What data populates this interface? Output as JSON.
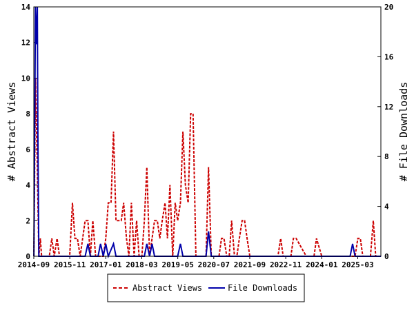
{
  "chart_data": {
    "type": "line",
    "x_tick_labels": [
      "2014-09",
      "2015-11",
      "2017-01",
      "2018-03",
      "2019-05",
      "2020-07",
      "2021-09",
      "2022-11",
      "2024-01",
      "2025-03"
    ],
    "y_left": {
      "label": "# Abstract Views",
      "lim": [
        0,
        14
      ],
      "ticks": [
        "0",
        "2",
        "4",
        "6",
        "8",
        "10",
        "12",
        "14"
      ]
    },
    "y_right": {
      "label": "# File Downloads",
      "lim": [
        0,
        20
      ],
      "ticks": [
        "0",
        "4",
        "8",
        "12",
        "16",
        "20"
      ]
    },
    "x_range": [
      2014.667,
      2025.917
    ],
    "legend_placement": "bottom",
    "series": [
      {
        "name": "Abstract Views",
        "axis": "left",
        "color": "#cc0000",
        "style": "dashed",
        "x": [
          2014.67,
          2014.72,
          2014.78,
          2014.83,
          2014.88,
          2014.92,
          2015.0,
          2015.08,
          2015.17,
          2015.25,
          2015.33,
          2015.42,
          2015.5,
          2015.58,
          2015.67,
          2015.75,
          2015.83,
          2015.92,
          2016.0,
          2016.08,
          2016.17,
          2016.25,
          2016.33,
          2016.42,
          2016.5,
          2016.58,
          2016.67,
          2016.75,
          2016.83,
          2016.92,
          2017.0,
          2017.08,
          2017.17,
          2017.25,
          2017.33,
          2017.42,
          2017.5,
          2017.58,
          2017.67,
          2017.75,
          2017.83,
          2017.92,
          2018.0,
          2018.08,
          2018.17,
          2018.25,
          2018.33,
          2018.42,
          2018.5,
          2018.58,
          2018.67,
          2018.75,
          2018.83,
          2018.92,
          2019.0,
          2019.08,
          2019.17,
          2019.25,
          2019.33,
          2019.42,
          2019.5,
          2019.58,
          2019.67,
          2019.75,
          2019.83,
          2019.92,
          2020.0,
          2020.08,
          2020.17,
          2020.25,
          2020.33,
          2020.42,
          2020.5,
          2020.58,
          2020.67,
          2020.75,
          2020.83,
          2020.92,
          2021.0,
          2021.08,
          2021.17,
          2021.25,
          2021.33,
          2021.42,
          2021.5,
          2021.58,
          2021.67,
          2021.75,
          2022.0,
          2022.5,
          2022.58,
          2022.67,
          2022.75,
          2022.92,
          2023.0,
          2023.08,
          2023.17,
          2023.5,
          2023.67,
          2023.75,
          2023.83,
          2024.0,
          2024.5,
          2025.0,
          2025.08,
          2025.17,
          2025.25,
          2025.33,
          2025.5,
          2025.58,
          2025.67,
          2025.75,
          2025.83
        ],
        "y": [
          0,
          10,
          5,
          0,
          1,
          0,
          0,
          0,
          0,
          1,
          0,
          1,
          0,
          0,
          0,
          0,
          0,
          3,
          1,
          1,
          0,
          1,
          2,
          2,
          0,
          2,
          0,
          0,
          0,
          0,
          1,
          3,
          3,
          7,
          2,
          2,
          2,
          3,
          1,
          0,
          3,
          0,
          2,
          0,
          0,
          2,
          5,
          0,
          1,
          2,
          2,
          1,
          2,
          3,
          1,
          4,
          0,
          3,
          2,
          3,
          7,
          4,
          3,
          8,
          8,
          0,
          0,
          0,
          0,
          0,
          5,
          0,
          0,
          0,
          0,
          1,
          1,
          0,
          0,
          2,
          0,
          0,
          1,
          2,
          2,
          1,
          0,
          0,
          0,
          0,
          0,
          1,
          0,
          0,
          0,
          1,
          1,
          0,
          0,
          0,
          1,
          0,
          0,
          0,
          0,
          1,
          1,
          0,
          0,
          0,
          2,
          0,
          0
        ]
      },
      {
        "name": "File Downloads",
        "axis": "right",
        "color": "#0000aa",
        "style": "solid",
        "x": [
          2014.67,
          2014.72,
          2014.75,
          2014.78,
          2014.8,
          2014.83,
          2014.88,
          2016.33,
          2016.42,
          2016.5,
          2016.75,
          2016.83,
          2016.92,
          2017.0,
          2017.08,
          2017.25,
          2017.33,
          2017.42,
          2017.5,
          2017.58,
          2017.67,
          2018.25,
          2018.33,
          2018.42,
          2018.5,
          2018.58,
          2019.33,
          2019.42,
          2019.5,
          2020.25,
          2020.33,
          2020.42,
          2020.5,
          2024.92,
          2025.0,
          2025.08,
          2025.92
        ],
        "y": [
          0,
          20,
          17,
          20,
          10,
          0,
          0,
          0,
          1,
          0,
          0,
          1,
          0,
          1,
          0,
          1,
          0,
          0,
          0,
          0,
          0,
          0,
          1,
          0,
          1,
          0,
          0,
          1,
          0,
          0,
          2,
          0,
          0,
          0,
          1,
          0,
          0
        ]
      }
    ]
  }
}
